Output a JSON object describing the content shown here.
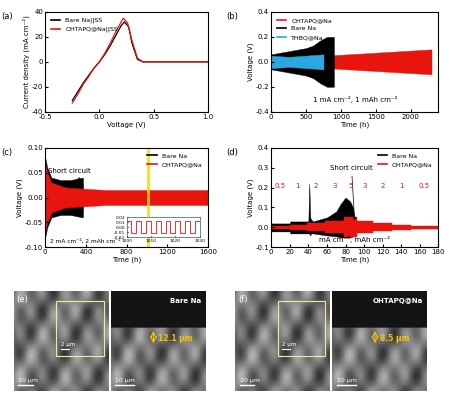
{
  "chart_data": [
    {
      "type": "line",
      "title": "(a)",
      "x_label": "Voltage (V)",
      "y_label": "Current density (mA cm⁻²)",
      "xlim": [
        -0.5,
        1.0
      ],
      "xticks": [
        -0.5,
        {
          "value": 0.0,
          "label": "0.0"
        },
        0.5,
        {
          "value": 1.0,
          "label": "1.0"
        }
      ],
      "ylim": [
        -40,
        40
      ],
      "yticks": [
        -40,
        -20,
        0,
        20,
        40
      ],
      "legend": "upper left",
      "series": [
        {
          "name": "Bare Na||SS",
          "color": "#000000",
          "x": [
            -0.25,
            -0.2,
            -0.15,
            -0.1,
            -0.05,
            0.0,
            0.05,
            0.1,
            0.15,
            0.2,
            0.23,
            0.27,
            0.3,
            0.35,
            0.4,
            0.6,
            0.8,
            1.0
          ],
          "values": [
            -31,
            -24,
            -17,
            -11,
            -5,
            0,
            6,
            13,
            21,
            29,
            32,
            28,
            15,
            2,
            0,
            0,
            0,
            0
          ]
        },
        {
          "name": "OHTAPQ@Na||SS",
          "color": "#e8150f",
          "x": [
            -0.25,
            -0.2,
            -0.15,
            -0.1,
            -0.05,
            0.0,
            0.05,
            0.1,
            0.15,
            0.2,
            0.22,
            0.26,
            0.3,
            0.35,
            0.4,
            0.6,
            0.8,
            1.0
          ],
          "values": [
            -33,
            -26,
            -18,
            -12,
            -5,
            0,
            7,
            15,
            24,
            32,
            35,
            31,
            17,
            3,
            0,
            0,
            0,
            0
          ]
        }
      ]
    },
    {
      "type": "area",
      "title": "(b)",
      "x_label": "Time (h)",
      "y_label": "Voltage (V)",
      "xlim": [
        0,
        2400
      ],
      "xticks": [
        0,
        500,
        1000,
        1500,
        2000
      ],
      "ylim": [
        -0.4,
        0.4
      ],
      "yticks": [
        -0.4,
        -0.2,
        {
          "value": 0.0,
          "label": "0.0"
        },
        0.2,
        0.4
      ],
      "legend": "upper left",
      "condition": "1 mA cm⁻², 1 mAh cm⁻²",
      "series": [
        {
          "name": "OHTAPQ@Na",
          "color": "#e8150f",
          "x": [
            0,
            200,
            500,
            800,
            1100,
            1400,
            1700,
            2000,
            2300
          ],
          "upper": [
            0.04,
            0.03,
            0.04,
            0.05,
            0.06,
            0.07,
            0.08,
            0.09,
            0.1
          ],
          "lower": [
            -0.04,
            -0.03,
            -0.04,
            -0.05,
            -0.06,
            -0.07,
            -0.08,
            -0.09,
            -0.1
          ]
        },
        {
          "name": "Bare Na",
          "color": "#000000",
          "x": [
            0,
            100,
            200,
            300,
            400,
            500,
            600,
            700,
            800,
            900
          ],
          "upper": [
            0.06,
            0.07,
            0.08,
            0.09,
            0.1,
            0.11,
            0.13,
            0.17,
            0.2,
            0.2
          ],
          "lower": [
            -0.06,
            -0.07,
            -0.08,
            -0.09,
            -0.1,
            -0.11,
            -0.13,
            -0.17,
            -0.2,
            -0.2
          ]
        },
        {
          "name": "THBQ@Na",
          "color": "#29a9e0",
          "x": [
            0,
            250,
            500,
            750
          ],
          "upper": [
            0.05,
            0.04,
            0.05,
            0.06
          ],
          "lower": [
            -0.05,
            -0.04,
            -0.05,
            -0.06
          ]
        }
      ]
    },
    {
      "type": "area",
      "title": "(c)",
      "x_label": "Time (h)",
      "y_label": "Voltage (V)",
      "xlim": [
        0,
        1600
      ],
      "xticks": [
        0,
        400,
        800,
        1200,
        1600
      ],
      "ylim": [
        -0.1,
        0.1
      ],
      "yticks": [
        {
          "value": -0.1,
          "label": "-0.10"
        },
        {
          "value": -0.05,
          "label": "-0.05"
        },
        {
          "value": 0.0,
          "label": "0.00"
        },
        {
          "value": 0.05,
          "label": "0.05"
        },
        {
          "value": 0.1,
          "label": "0.10"
        }
      ],
      "legend": "upper right",
      "condition": "2 mA cm⁻², 2 mAh cm⁻²",
      "annotations": [
        {
          "text": "Short circuit",
          "x": 370,
          "y": 0.03
        }
      ],
      "series": [
        {
          "name": "Bare Na",
          "color": "#000000",
          "x": [
            0,
            20,
            60,
            150,
            250,
            370,
            375,
            400
          ],
          "upper": [
            0.08,
            0.06,
            0.04,
            0.035,
            0.035,
            0.04,
            0.01,
            0.01
          ],
          "lower": [
            -0.08,
            -0.06,
            -0.04,
            -0.035,
            -0.035,
            -0.04,
            -0.01,
            -0.01
          ]
        },
        {
          "name": "OHTAPQ@Na",
          "color": "#e8150f",
          "x": [
            0,
            20,
            60,
            200,
            600,
            1000,
            1400,
            1600
          ],
          "upper": [
            0.07,
            0.05,
            0.03,
            0.02,
            0.015,
            0.015,
            0.015,
            0.015
          ],
          "lower": [
            -0.07,
            -0.05,
            -0.03,
            -0.02,
            -0.015,
            -0.015,
            -0.015,
            -0.015
          ]
        }
      ],
      "inset": {
        "type": "line",
        "color": "#e8150f",
        "line_style": "steps",
        "x": [
          1000,
          1002,
          1004,
          1006,
          1008,
          1010,
          1012,
          1014,
          1016,
          1018,
          1020,
          1022,
          1024,
          1026,
          1028,
          1030
        ],
        "values": [
          0.012,
          -0.012,
          0.012,
          -0.012,
          0.012,
          -0.012,
          0.012,
          -0.012,
          0.012,
          -0.012,
          0.012,
          -0.012,
          0.012,
          -0.012,
          0.012,
          -0.012
        ],
        "xlim": [
          1000,
          1030
        ],
        "xticks": [
          1000,
          1010,
          1020,
          1030
        ],
        "ylim": [
          -0.02,
          0.02
        ],
        "yticks": [
          {
            "value": -0.02,
            "label": "-0.02"
          },
          {
            "value": -0.01,
            "label": "-0.01"
          },
          {
            "value": 0.0,
            "label": "0.00"
          },
          {
            "value": 0.01,
            "label": "0.01"
          },
          {
            "value": 0.02,
            "label": "0.02"
          }
        ]
      }
    },
    {
      "type": "area",
      "title": "(d)",
      "x_label": "Time (h)",
      "y_label": "Voltage (V)",
      "xlim": [
        0,
        180
      ],
      "xticks": [
        0,
        20,
        40,
        60,
        80,
        100,
        120,
        140,
        160,
        180
      ],
      "ylim": [
        -0.1,
        0.4
      ],
      "yticks": [
        -0.1,
        {
          "value": 0.0,
          "label": "0.0"
        },
        0.1,
        0.2,
        0.3,
        0.4
      ],
      "legend": "upper right",
      "condition": "mA cm⁻², mAh cm⁻²",
      "annotations": [
        {
          "text": "Short circuit",
          "x": 90,
          "y": 0.02
        }
      ],
      "rate_labels": {
        "x": [
          10,
          28,
          48,
          68,
          85,
          101,
          120,
          140,
          165
        ],
        "values": [
          0.5,
          1,
          2,
          3,
          5,
          3,
          2,
          1,
          0.5
        ]
      },
      "series": [
        {
          "name": "Bare Na",
          "color": "#000000",
          "x": [
            0,
            20,
            20.5,
            40,
            41,
            42,
            43,
            45,
            60,
            70,
            75,
            80,
            85,
            88,
            90,
            91,
            180
          ],
          "upper": [
            0.02,
            0.02,
            0.03,
            0.03,
            0.22,
            0.05,
            0.04,
            0.03,
            0.05,
            0.08,
            0.12,
            0.15,
            0.13,
            0.1,
            0.02,
            0.005,
            0.005
          ],
          "lower": [
            -0.02,
            -0.02,
            -0.03,
            -0.03,
            -0.03,
            -0.04,
            -0.03,
            -0.03,
            -0.04,
            -0.045,
            -0.05,
            -0.05,
            -0.05,
            -0.045,
            -0.02,
            -0.005,
            -0.005
          ]
        },
        {
          "name": "OHTAPQ@Na",
          "color": "#e8150f",
          "line_style": "steps",
          "x": [
            0,
            20,
            38,
            58,
            78,
            92,
            110,
            130,
            150,
            180
          ],
          "upper": [
            0.008,
            0.012,
            0.02,
            0.03,
            0.05,
            0.03,
            0.02,
            0.012,
            0.008,
            0.008
          ],
          "lower": [
            -0.008,
            -0.012,
            -0.02,
            -0.03,
            -0.05,
            -0.03,
            -0.02,
            -0.012,
            -0.008,
            -0.008
          ]
        }
      ]
    }
  ],
  "images": [
    {
      "title": "(e)",
      "views": [
        {
          "scale_bar": "20 μm",
          "inset_scale_bar": "2 μm"
        },
        {
          "sample": "Bare Na",
          "scale_bar": "10 μm",
          "thickness": "12.1 μm"
        }
      ]
    },
    {
      "title": "(f)",
      "views": [
        {
          "scale_bar": "20 μm",
          "inset_scale_bar": "2 μm"
        },
        {
          "sample": "OHTAPQ@Na",
          "scale_bar": "10 μm",
          "thickness": "8.5 μm"
        }
      ]
    }
  ]
}
